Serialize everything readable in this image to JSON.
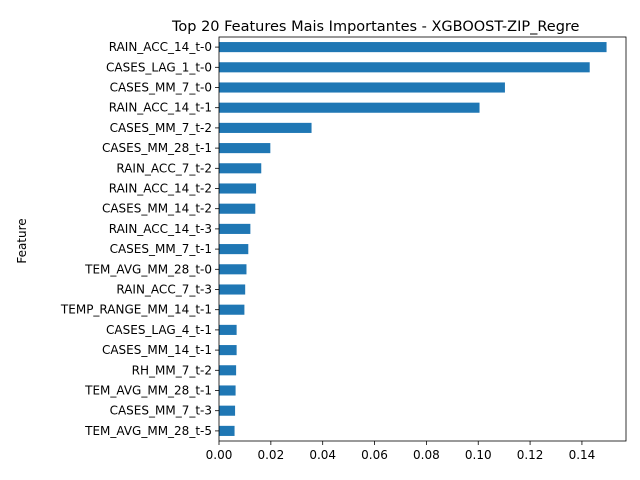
{
  "chart_data": {
    "type": "bar",
    "orientation": "horizontal",
    "title": "Top 20 Features Mais Importantes - XGBOOST-ZIP_Regre",
    "xlabel": "",
    "ylabel": "Feature",
    "xlim": [
      0,
      0.157
    ],
    "xticks": [
      "0.00",
      "0.02",
      "0.04",
      "0.06",
      "0.08",
      "0.10",
      "0.12",
      "0.14"
    ],
    "grid": false,
    "legend": "none",
    "bar_color": "#1f77b4",
    "categories": [
      "RAIN_ACC_14_t-0",
      "CASES_LAG_1_t-0",
      "CASES_MM_7_t-0",
      "RAIN_ACC_14_t-1",
      "CASES_MM_7_t-2",
      "CASES_MM_28_t-1",
      "RAIN_ACC_7_t-2",
      "RAIN_ACC_14_t-2",
      "CASES_MM_14_t-2",
      "RAIN_ACC_14_t-3",
      "CASES_MM_7_t-1",
      "TEM_AVG_MM_28_t-0",
      "RAIN_ACC_7_t-3",
      "TEMP_RANGE_MM_14_t-1",
      "CASES_LAG_4_t-1",
      "CASES_MM_14_t-1",
      "RH_MM_7_t-2",
      "TEM_AVG_MM_28_t-1",
      "CASES_MM_7_t-3",
      "TEM_AVG_MM_28_t-5"
    ],
    "values": [
      0.1495,
      0.143,
      0.1103,
      0.1005,
      0.0357,
      0.0198,
      0.0163,
      0.0143,
      0.014,
      0.0121,
      0.0113,
      0.0106,
      0.0101,
      0.0098,
      0.0068,
      0.0068,
      0.0066,
      0.0064,
      0.0062,
      0.006
    ]
  }
}
